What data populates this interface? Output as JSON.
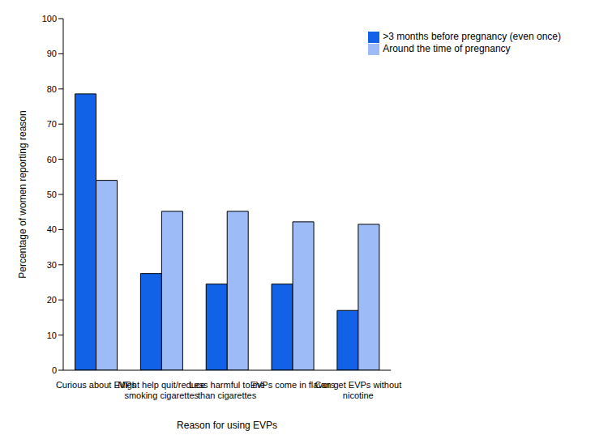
{
  "chart_data": {
    "type": "bar",
    "x_label": "Reason for using EVPs",
    "y_label": "Percentage of women reporting reason",
    "categories": [
      "Curious about EVPs",
      "Might help quit/reduce smoking cigarettes",
      "Less harmful to me than cigarettes",
      "EVPs come in flavors",
      "Can get EVPs without nicotine"
    ],
    "series": [
      {
        "name": ">3 months before pregnancy (even once)",
        "color": "#1262e8",
        "values": [
          78.6,
          27.5,
          24.5,
          24.5,
          17.0
        ]
      },
      {
        "name": "Around the time of pregnancy",
        "color": "#9dbcf7",
        "values": [
          54.0,
          45.2,
          45.2,
          42.2,
          41.5
        ]
      }
    ],
    "ylim": [
      0,
      100
    ],
    "yticks": [
      0,
      10,
      20,
      30,
      40,
      50,
      60,
      70,
      80,
      90,
      100
    ],
    "grid": false,
    "legend": "upper right"
  }
}
